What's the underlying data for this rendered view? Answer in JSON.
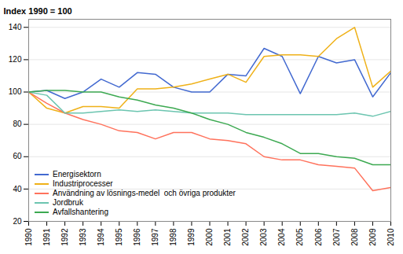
{
  "chart_data": {
    "type": "line",
    "title": "Index 1990 = 100",
    "x": [
      1990,
      1991,
      1992,
      1993,
      1994,
      1995,
      1996,
      1997,
      1998,
      1999,
      2000,
      2001,
      2002,
      2003,
      2004,
      2005,
      2006,
      2007,
      2008,
      2009,
      2010
    ],
    "series": [
      {
        "name": "Energisektorn",
        "values": [
          100,
          101,
          96,
          100,
          108,
          103,
          112,
          111,
          103,
          100,
          100,
          111,
          110,
          127,
          122,
          99,
          122,
          118,
          120,
          97,
          112
        ]
      },
      {
        "name": "Industriprocesser",
        "values": [
          100,
          90,
          87,
          91,
          91,
          90,
          102,
          102,
          103,
          105,
          108,
          111,
          106,
          122,
          123,
          123,
          122,
          133,
          140,
          103,
          113
        ]
      },
      {
        "name": "Användning av lösnings-medel  och övriga produkter",
        "values": [
          100,
          93,
          87,
          83,
          80,
          76,
          75,
          71,
          75,
          75,
          71,
          70,
          68,
          60,
          58,
          58,
          55,
          54,
          53,
          39,
          41
        ]
      },
      {
        "name": "Jordbruk",
        "values": [
          100,
          98,
          87,
          87,
          88,
          89,
          88,
          89,
          88,
          87,
          87,
          87,
          86,
          86,
          86,
          86,
          86,
          86,
          87,
          85,
          88
        ]
      },
      {
        "name": "Avfallshantering",
        "values": [
          100,
          101,
          101,
          100,
          100,
          97,
          95,
          92,
          90,
          87,
          83,
          80,
          75,
          72,
          68,
          62,
          62,
          60,
          59,
          55,
          55
        ]
      }
    ],
    "xlim": [
      1990,
      2010
    ],
    "xticks": [
      1990,
      1991,
      1992,
      1993,
      1994,
      1995,
      1996,
      1997,
      1998,
      1999,
      2000,
      2001,
      2002,
      2003,
      2004,
      2005,
      2006,
      2007,
      2008,
      2009,
      2010
    ],
    "ylim": [
      20,
      145
    ],
    "yticks": [
      20,
      40,
      60,
      80,
      100,
      120,
      140
    ],
    "grid": true,
    "legend": "lower left"
  }
}
